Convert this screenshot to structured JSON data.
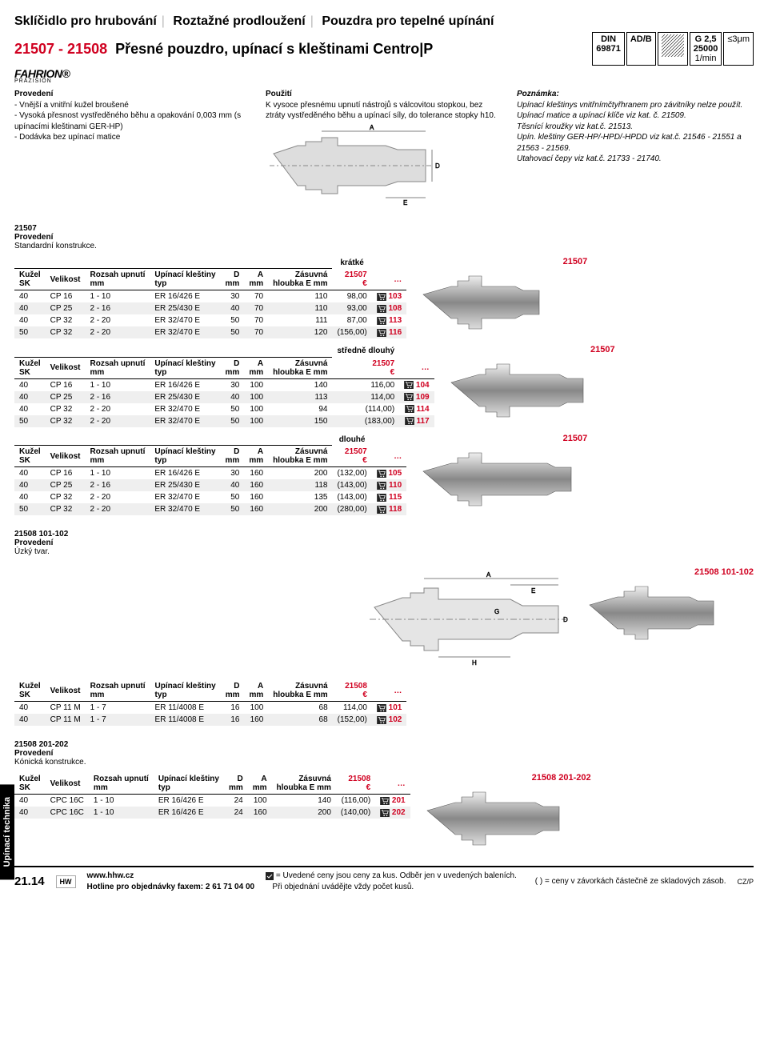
{
  "breadcrumb": [
    "Sklíčidlo pro hrubování",
    "Roztažné prodloužení",
    "Pouzdra pro tepelné upínání"
  ],
  "code": "21507 - 21508",
  "title": "Přesné pouzdro, upínací s kleštinami Centro|P",
  "brand": "FAHRION®",
  "brand_sub": "PRÄZISION",
  "spec_boxes": [
    {
      "l1": "DIN",
      "l2": "69871"
    },
    {
      "l1": "AD/B"
    },
    {
      "l1": "",
      "hatch": true
    },
    {
      "l1": "G 2,5",
      "l2": "25000",
      "l3": "1/min"
    },
    {
      "l1": "≤3μm"
    }
  ],
  "col1": {
    "h": "Provedení",
    "li": [
      "- Vnější a vnitřní kužel broušené",
      "- Vysoká přesnost vystředěného běhu a opakování 0,003 mm (s upínacími kleštinami GER-HP)",
      "- Dodávka bez upínací matice"
    ]
  },
  "col2": {
    "h": "Použití",
    "p": "K vysoce přesnému upnutí nástrojů s válcovitou stopkou, bez ztráty vystředěného běhu a upínací síly, do tolerance stopky h10."
  },
  "col3": {
    "h": "Poznámka:",
    "p": "Upínací kleštinys vnitřnímčtyřhranem pro závitníky nelze použít.\nUpínací matice a upínací klíče viz kat. č. 21509.\nTěsnící kroužky viz kat.č. 21513.\nUpín. kleštiny GER-HP/-HPD/-HPDD viz kat.č. 21546 - 21551 a 21563 - 21569.\nUtahovací čepy viz kat.č. 21733 - 21740."
  },
  "sections": [
    {
      "id": "s1",
      "head": "21507",
      "sub1": "Provedení",
      "sub2": "Standardní konstrukce.",
      "variant": "krátké",
      "code": "21507",
      "code_right": "21507",
      "headers": [
        "Kužel\nSK",
        "Velikost",
        "Rozsah upnutí\nmm",
        "Upínací kleštiny\ntyp",
        "D\nmm",
        "A\nmm",
        "Zásuvná\nhloubka E mm",
        "21507\n€",
        "…"
      ],
      "rows": [
        [
          "40",
          "CP 16",
          "1 - 10",
          "ER 16/426 E",
          "30",
          "70",
          "110",
          "98,00",
          "103"
        ],
        [
          "40",
          "CP 25",
          "2 - 16",
          "ER 25/430 E",
          "40",
          "70",
          "110",
          "93,00",
          "108"
        ],
        [
          "40",
          "CP 32",
          "2 - 20",
          "ER 32/470 E",
          "50",
          "70",
          "111",
          "87,00",
          "113"
        ],
        [
          "50",
          "CP 32",
          "2 - 20",
          "ER 32/470 E",
          "50",
          "70",
          "120",
          "(156,00)",
          "116"
        ]
      ]
    },
    {
      "id": "s2",
      "variant": "středně dlouhý",
      "code": "21507",
      "code_right": "21507",
      "headers": [
        "Kužel\nSK",
        "Velikost",
        "Rozsah upnutí\nmm",
        "Upínací kleštiny\ntyp",
        "D\nmm",
        "A\nmm",
        "Zásuvná\nhloubka E mm",
        "21507\n€",
        "…"
      ],
      "rows": [
        [
          "40",
          "CP 16",
          "1 - 10",
          "ER 16/426 E",
          "30",
          "100",
          "140",
          "116,00",
          "104"
        ],
        [
          "40",
          "CP 25",
          "2 - 16",
          "ER 25/430 E",
          "40",
          "100",
          "113",
          "114,00",
          "109"
        ],
        [
          "40",
          "CP 32",
          "2 - 20",
          "ER 32/470 E",
          "50",
          "100",
          "94",
          "(114,00)",
          "114"
        ],
        [
          "50",
          "CP 32",
          "2 - 20",
          "ER 32/470 E",
          "50",
          "100",
          "150",
          "(183,00)",
          "117"
        ]
      ]
    },
    {
      "id": "s3",
      "variant": "dlouhé",
      "code": "21507",
      "code_right": "21507",
      "headers": [
        "Kužel\nSK",
        "Velikost",
        "Rozsah upnutí\nmm",
        "Upínací kleštiny\ntyp",
        "D\nmm",
        "A\nmm",
        "Zásuvná\nhloubka E mm",
        "21507\n€",
        "…"
      ],
      "rows": [
        [
          "40",
          "CP 16",
          "1 - 10",
          "ER 16/426 E",
          "30",
          "160",
          "200",
          "(132,00)",
          "105"
        ],
        [
          "40",
          "CP 25",
          "2 - 16",
          "ER 25/430 E",
          "40",
          "160",
          "118",
          "(143,00)",
          "110"
        ],
        [
          "40",
          "CP 32",
          "2 - 20",
          "ER 32/470 E",
          "50",
          "160",
          "135",
          "(143,00)",
          "115"
        ],
        [
          "50",
          "CP 32",
          "2 - 20",
          "ER 32/470 E",
          "50",
          "160",
          "200",
          "(280,00)",
          "118"
        ]
      ]
    },
    {
      "id": "s4",
      "head": "21508 101-102",
      "sub1": "Provedení",
      "sub2": "Úzký tvar.",
      "code": "21508",
      "code_right": "21508 101-102",
      "diagram": true,
      "headers": [
        "Kužel\nSK",
        "Velikost",
        "Rozsah upnutí\nmm",
        "Upínací kleštiny\ntyp",
        "D\nmm",
        "A\nmm",
        "Zásuvná\nhloubka E mm",
        "21508\n€",
        "…"
      ],
      "rows": [
        [
          "40",
          "CP 11 M",
          "1 - 7",
          "ER 11/4008 E",
          "16",
          "100",
          "68",
          "114,00",
          "101"
        ],
        [
          "40",
          "CP 11 M",
          "1 - 7",
          "ER 11/4008 E",
          "16",
          "160",
          "68",
          "(152,00)",
          "102"
        ]
      ]
    },
    {
      "id": "s5",
      "head": "21508 201-202",
      "sub1": "Provedení",
      "sub2": "Kónická konstrukce.",
      "code": "21508",
      "code_right": "21508 201-202",
      "headers": [
        "Kužel\nSK",
        "Velikost",
        "Rozsah upnutí\nmm",
        "Upínací kleštiny\ntyp",
        "D\nmm",
        "A\nmm",
        "Zásuvná\nhloubka E mm",
        "21508\n€",
        "…"
      ],
      "rows": [
        [
          "40",
          "CPC 16C",
          "1 - 10",
          "ER 16/426 E",
          "24",
          "100",
          "140",
          "(116,00)",
          "201"
        ],
        [
          "40",
          "CPC 16C",
          "1 - 10",
          "ER 16/426 E",
          "24",
          "160",
          "200",
          "(140,00)",
          "202"
        ]
      ]
    }
  ],
  "side_tab": "Upínací technika",
  "footer": {
    "page": "21.14",
    "logo": "HW",
    "url": "www.hhw.cz",
    "hotline": "Hotline pro objednávky faxem: 2 61 71 04 00",
    "note1": "= Uvedené ceny jsou ceny za kus. Odběr jen v uvedených baleních.",
    "note2": "Při objednání uvádějte vždy počet kusů.",
    "note3": "( ) = ceny v závorkách částečně ze skladových zásob.",
    "cz": "CZ/P"
  }
}
